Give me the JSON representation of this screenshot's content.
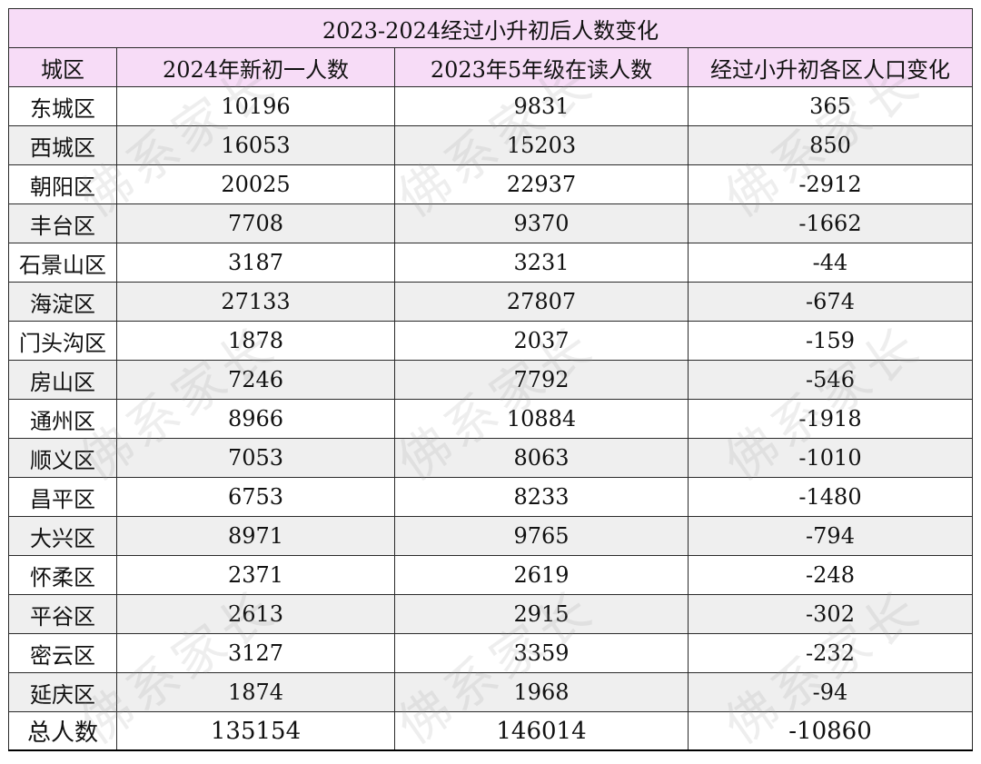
{
  "table": {
    "title": "2023-2024经过小升初后人数变化",
    "headers": [
      "城区",
      "2024年新初一人数",
      "2023年5年级在读人数",
      "经过小升初各区人口变化"
    ],
    "rows": [
      [
        "东城区",
        "10196",
        "9831",
        "365"
      ],
      [
        "西城区",
        "16053",
        "15203",
        "850"
      ],
      [
        "朝阳区",
        "20025",
        "22937",
        "-2912"
      ],
      [
        "丰台区",
        "7708",
        "9370",
        "-1662"
      ],
      [
        "石景山区",
        "3187",
        "3231",
        "-44"
      ],
      [
        "海淀区",
        "27133",
        "27807",
        "-674"
      ],
      [
        "门头沟区",
        "1878",
        "2037",
        "-159"
      ],
      [
        "房山区",
        "7246",
        "7792",
        "-546"
      ],
      [
        "通州区",
        "8966",
        "10884",
        "-1918"
      ],
      [
        "顺义区",
        "7053",
        "8063",
        "-1010"
      ],
      [
        "昌平区",
        "6753",
        "8233",
        "-1480"
      ],
      [
        "大兴区",
        "8971",
        "9765",
        "-794"
      ],
      [
        "怀柔区",
        "2371",
        "2619",
        "-248"
      ],
      [
        "平谷区",
        "2613",
        "2915",
        "-302"
      ],
      [
        "密云区",
        "3127",
        "3359",
        "-232"
      ],
      [
        "延庆区",
        "1874",
        "1968",
        "-94"
      ]
    ],
    "total": [
      "总人数",
      "135154",
      "146014",
      "-10860"
    ]
  },
  "watermark": {
    "text": "佛系家长"
  },
  "colors": {
    "header_bg": "#f7dcf7",
    "alt_row_bg": "#efefef",
    "border": "#2a2a2a"
  }
}
